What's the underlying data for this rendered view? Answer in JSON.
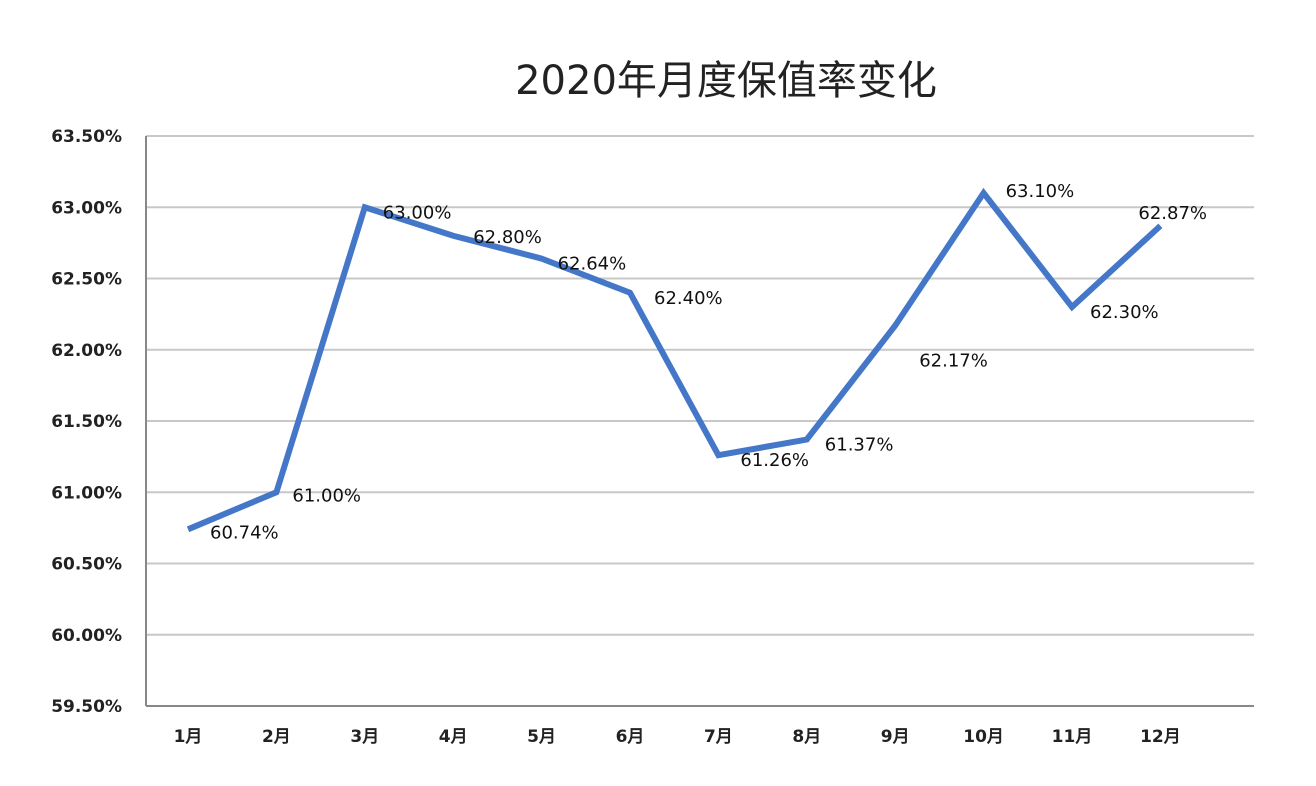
{
  "chart_data": {
    "type": "line",
    "title": "2020年月度保值率变化",
    "xlabel": "",
    "ylabel": "",
    "categories": [
      "1月",
      "2月",
      "3月",
      "4月",
      "5月",
      "6月",
      "7月",
      "8月",
      "9月",
      "10月",
      "11月",
      "12月"
    ],
    "series": [
      {
        "values": [
          60.74,
          61.0,
          63.0,
          62.8,
          62.64,
          62.4,
          61.26,
          61.37,
          62.17,
          63.1,
          62.3,
          62.87
        ],
        "labels": [
          "60.74%",
          "61.00%",
          "63.00%",
          "62.80%",
          "62.64%",
          "62.40%",
          "61.26%",
          "61.37%",
          "62.17%",
          "63.10%",
          "62.30%",
          "62.87%"
        ]
      }
    ],
    "ylim": [
      59.5,
      63.5
    ],
    "yticks": [
      59.5,
      60.0,
      60.5,
      61.0,
      61.5,
      62.0,
      62.5,
      63.0,
      63.5
    ],
    "ytick_labels": [
      "59.50%",
      "60.00%",
      "60.50%",
      "61.00%",
      "61.50%",
      "62.00%",
      "62.50%",
      "63.00%",
      "63.50%"
    ],
    "grid": true,
    "legend": "none",
    "colors": {
      "line": "#4477c8",
      "grid": "#c8c8c8",
      "axis": "#888888"
    }
  }
}
